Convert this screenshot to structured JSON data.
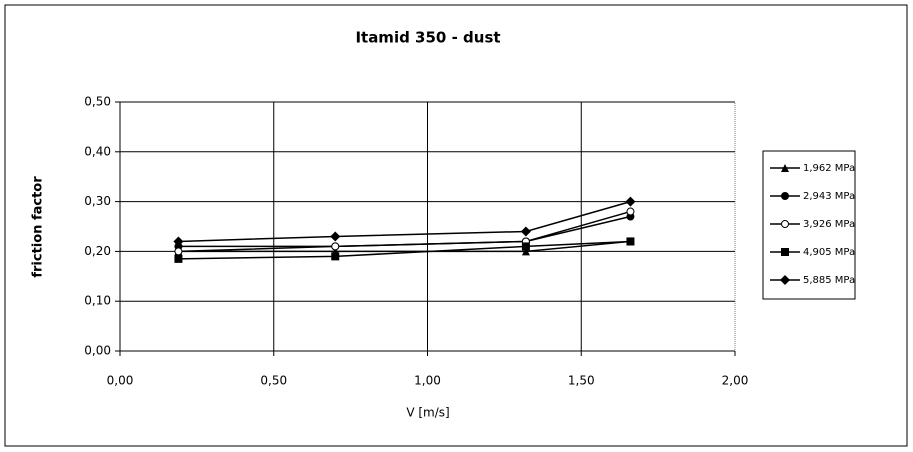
{
  "chart_data": {
    "type": "line",
    "title": "Itamid 350 - dust",
    "xlabel": "V [m/s]",
    "ylabel": "friction factor",
    "x": [
      0.19,
      0.7,
      1.32,
      1.66
    ],
    "series": [
      {
        "name": "1,962 MPa",
        "color": "#000000",
        "marker": "triangle",
        "values": [
          0.2,
          0.2,
          0.2,
          0.22
        ]
      },
      {
        "name": "2,943 MPa",
        "color": "#000000",
        "marker": "circle",
        "values": [
          0.21,
          0.21,
          0.22,
          0.27
        ]
      },
      {
        "name": "3,926 MPa",
        "color": "#000000",
        "marker": "open-circle",
        "values": [
          0.2,
          0.21,
          0.22,
          0.28
        ]
      },
      {
        "name": "4,905 MPa",
        "color": "#000000",
        "marker": "square",
        "values": [
          0.185,
          0.19,
          0.21,
          0.22
        ]
      },
      {
        "name": "5,885 MPa",
        "color": "#000000",
        "marker": "diamond",
        "values": [
          0.22,
          0.23,
          0.24,
          0.3
        ]
      }
    ],
    "xlim": [
      0,
      2
    ],
    "xticks": [
      {
        "value": 0,
        "label": "0,00"
      },
      {
        "value": 0.5,
        "label": "0,50"
      },
      {
        "value": 1,
        "label": "1,00"
      },
      {
        "value": 1.5,
        "label": "1,50"
      },
      {
        "value": 2,
        "label": "2,00"
      }
    ],
    "ylim": [
      0,
      0.5
    ],
    "yticks": [
      {
        "value": 0,
        "label": "0,00"
      },
      {
        "value": 0.1,
        "label": "0,10"
      },
      {
        "value": 0.2,
        "label": "0,20"
      },
      {
        "value": 0.3,
        "label": "0,30"
      },
      {
        "value": 0.4,
        "label": "0,40"
      },
      {
        "value": 0.5,
        "label": "0,50"
      }
    ],
    "grid": true,
    "legend": "right"
  }
}
